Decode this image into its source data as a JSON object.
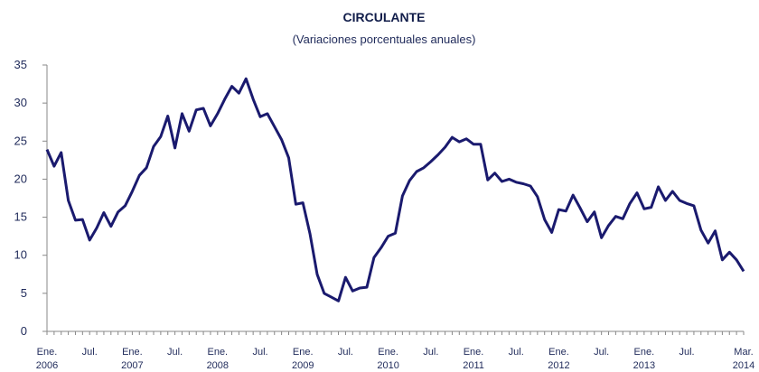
{
  "chart_data": {
    "type": "line",
    "title": "CIRCULANTE",
    "subtitle": "(Variaciones porcentuales anuales)",
    "categories": [
      "Ene.\n2006",
      null,
      null,
      null,
      null,
      null,
      "Jul.",
      null,
      null,
      null,
      null,
      null,
      "Ene.\n2007",
      null,
      null,
      null,
      null,
      null,
      "Jul.",
      null,
      null,
      null,
      null,
      null,
      "Ene.\n2008",
      null,
      null,
      null,
      null,
      null,
      "Jul.",
      null,
      null,
      null,
      null,
      null,
      "Ene.\n2009",
      null,
      null,
      null,
      null,
      null,
      "Jul.",
      null,
      null,
      null,
      null,
      null,
      "Ene.\n2010",
      null,
      null,
      null,
      null,
      null,
      "Jul.",
      null,
      null,
      null,
      null,
      null,
      "Ene.\n2011",
      null,
      null,
      null,
      null,
      null,
      "Jul.",
      null,
      null,
      null,
      null,
      null,
      "Ene.\n2012",
      null,
      null,
      null,
      null,
      null,
      "Jul.",
      null,
      null,
      null,
      null,
      null,
      "Ene.\n2013",
      null,
      null,
      null,
      null,
      null,
      "Jul.",
      null,
      null,
      null,
      null,
      null,
      null,
      null,
      "Mar.\n2014"
    ],
    "values": [
      23.9,
      21.7,
      23.5,
      17.2,
      14.6,
      14.7,
      12.0,
      13.6,
      15.6,
      13.8,
      15.7,
      16.5,
      18.4,
      20.5,
      21.5,
      24.3,
      25.6,
      28.3,
      24.1,
      28.6,
      26.3,
      29.1,
      29.3,
      27.0,
      28.6,
      30.5,
      32.2,
      31.3,
      33.2,
      30.5,
      28.2,
      28.6,
      26.9,
      25.2,
      22.8,
      16.7,
      16.9,
      12.8,
      7.5,
      5.0,
      4.5,
      4.0,
      7.1,
      5.3,
      5.7,
      5.8,
      9.7,
      11.0,
      12.5,
      12.9,
      17.8,
      19.8,
      21.0,
      21.5,
      22.3,
      23.2,
      24.2,
      25.5,
      24.9,
      25.3,
      24.6,
      24.6,
      19.9,
      20.8,
      19.7,
      20.0,
      19.6,
      19.4,
      19.1,
      17.7,
      14.7,
      13.0,
      16.0,
      15.8,
      17.9,
      16.2,
      14.4,
      15.7,
      12.3,
      13.9,
      15.1,
      14.8,
      16.8,
      18.2,
      16.1,
      16.3,
      19.0,
      17.2,
      18.4,
      17.2,
      16.8,
      16.5,
      13.3,
      11.6,
      13.2,
      9.4,
      10.4,
      9.4,
      7.9
    ],
    "color": "#1a1a6e",
    "ylim": [
      0,
      35
    ],
    "yticks": [
      0,
      5,
      10,
      15,
      20,
      25,
      30,
      35
    ]
  }
}
